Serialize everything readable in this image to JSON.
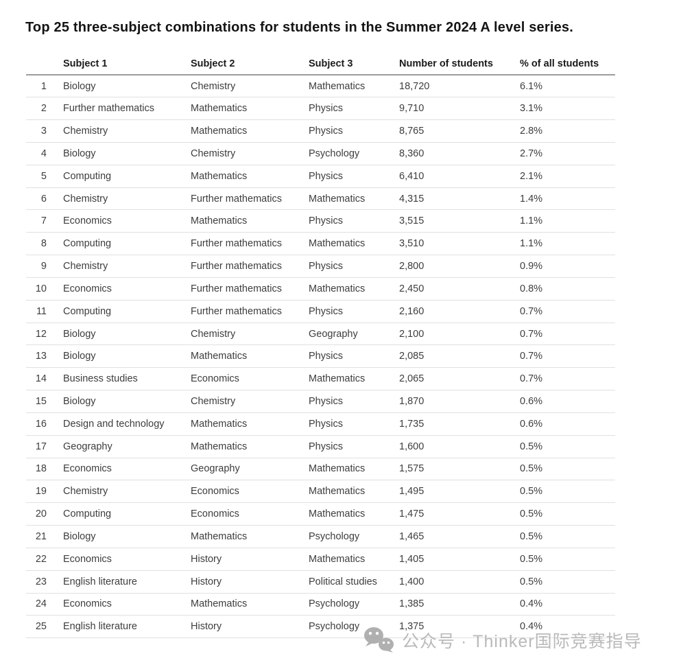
{
  "title": "Top 25 three-subject combinations for students in the Summer 2024 A level series.",
  "table": {
    "columns": {
      "rank": "",
      "subject1": "Subject 1",
      "subject2": "Subject 2",
      "subject3": "Subject 3",
      "students": "Number of students",
      "percent": "% of all students"
    },
    "rows": [
      {
        "rank": "1",
        "subject1": "Biology",
        "subject2": "Chemistry",
        "subject3": "Mathematics",
        "students": "18,720",
        "percent": "6.1%"
      },
      {
        "rank": "2",
        "subject1": "Further mathematics",
        "subject2": "Mathematics",
        "subject3": "Physics",
        "students": "9,710",
        "percent": "3.1%"
      },
      {
        "rank": "3",
        "subject1": "Chemistry",
        "subject2": "Mathematics",
        "subject3": "Physics",
        "students": "8,765",
        "percent": "2.8%"
      },
      {
        "rank": "4",
        "subject1": "Biology",
        "subject2": "Chemistry",
        "subject3": "Psychology",
        "students": "8,360",
        "percent": "2.7%"
      },
      {
        "rank": "5",
        "subject1": "Computing",
        "subject2": "Mathematics",
        "subject3": "Physics",
        "students": "6,410",
        "percent": "2.1%"
      },
      {
        "rank": "6",
        "subject1": "Chemistry",
        "subject2": "Further mathematics",
        "subject3": "Mathematics",
        "students": "4,315",
        "percent": "1.4%"
      },
      {
        "rank": "7",
        "subject1": "Economics",
        "subject2": "Mathematics",
        "subject3": "Physics",
        "students": "3,515",
        "percent": "1.1%"
      },
      {
        "rank": "8",
        "subject1": "Computing",
        "subject2": "Further mathematics",
        "subject3": "Mathematics",
        "students": "3,510",
        "percent": "1.1%"
      },
      {
        "rank": "9",
        "subject1": "Chemistry",
        "subject2": "Further mathematics",
        "subject3": "Physics",
        "students": "2,800",
        "percent": "0.9%"
      },
      {
        "rank": "10",
        "subject1": "Economics",
        "subject2": "Further mathematics",
        "subject3": "Mathematics",
        "students": "2,450",
        "percent": "0.8%"
      },
      {
        "rank": "11",
        "subject1": "Computing",
        "subject2": "Further mathematics",
        "subject3": "Physics",
        "students": "2,160",
        "percent": "0.7%"
      },
      {
        "rank": "12",
        "subject1": "Biology",
        "subject2": "Chemistry",
        "subject3": "Geography",
        "students": "2,100",
        "percent": "0.7%"
      },
      {
        "rank": "13",
        "subject1": "Biology",
        "subject2": "Mathematics",
        "subject3": "Physics",
        "students": "2,085",
        "percent": "0.7%"
      },
      {
        "rank": "14",
        "subject1": "Business studies",
        "subject2": "Economics",
        "subject3": "Mathematics",
        "students": "2,065",
        "percent": "0.7%"
      },
      {
        "rank": "15",
        "subject1": "Biology",
        "subject2": "Chemistry",
        "subject3": "Physics",
        "students": "1,870",
        "percent": "0.6%"
      },
      {
        "rank": "16",
        "subject1": "Design and technology",
        "subject2": "Mathematics",
        "subject3": "Physics",
        "students": "1,735",
        "percent": "0.6%"
      },
      {
        "rank": "17",
        "subject1": "Geography",
        "subject2": "Mathematics",
        "subject3": "Physics",
        "students": "1,600",
        "percent": "0.5%"
      },
      {
        "rank": "18",
        "subject1": "Economics",
        "subject2": "Geography",
        "subject3": "Mathematics",
        "students": "1,575",
        "percent": "0.5%"
      },
      {
        "rank": "19",
        "subject1": "Chemistry",
        "subject2": "Economics",
        "subject3": "Mathematics",
        "students": "1,495",
        "percent": "0.5%"
      },
      {
        "rank": "20",
        "subject1": "Computing",
        "subject2": "Economics",
        "subject3": "Mathematics",
        "students": "1,475",
        "percent": "0.5%"
      },
      {
        "rank": "21",
        "subject1": "Biology",
        "subject2": "Mathematics",
        "subject3": "Psychology",
        "students": "1,465",
        "percent": "0.5%"
      },
      {
        "rank": "22",
        "subject1": "Economics",
        "subject2": "History",
        "subject3": "Mathematics",
        "students": "1,405",
        "percent": "0.5%"
      },
      {
        "rank": "23",
        "subject1": "English literature",
        "subject2": "History",
        "subject3": "Political studies",
        "students": "1,400",
        "percent": "0.5%"
      },
      {
        "rank": "24",
        "subject1": "Economics",
        "subject2": "Mathematics",
        "subject3": "Psychology",
        "students": "1,385",
        "percent": "0.4%"
      },
      {
        "rank": "25",
        "subject1": "English literature",
        "subject2": "History",
        "subject3": "Psychology",
        "students": "1,375",
        "percent": "0.4%"
      }
    ]
  },
  "watermark": {
    "icon": "wechat-icon",
    "text": "公众号 · Thinker国际竞赛指导"
  },
  "colors": {
    "background": "#ffffff",
    "title_text": "#141414",
    "header_text": "#1b1b1b",
    "body_text": "#3d3d3d",
    "header_rule": "#9c9c9c",
    "row_rule": "#e0e0e0",
    "watermark": "#a9a9a9",
    "watermark_icon": "#9d9d9d"
  }
}
